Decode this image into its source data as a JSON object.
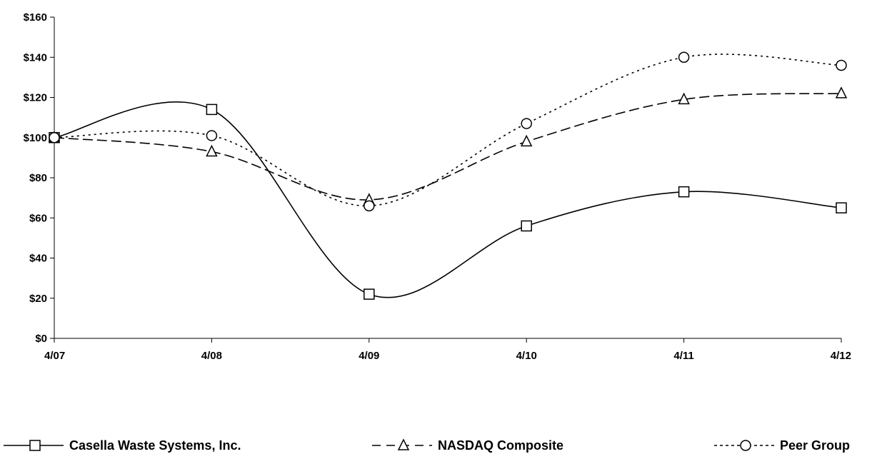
{
  "chart_data": {
    "type": "line",
    "categories": [
      "4/07",
      "4/08",
      "4/09",
      "4/10",
      "4/11",
      "4/12"
    ],
    "ylim": [
      0,
      160
    ],
    "yticks": [
      0,
      20,
      40,
      60,
      80,
      100,
      120,
      140,
      160
    ],
    "ytick_labels": [
      "$0",
      "$20",
      "$40",
      "$60",
      "$80",
      "$100",
      "$120",
      "$140",
      "$160"
    ],
    "grid": false,
    "legend_position": "bottom",
    "series": [
      {
        "name": "Casella Waste Systems, Inc.",
        "values": [
          100,
          114,
          22,
          56,
          73,
          65
        ],
        "marker": "square",
        "dash": "solid",
        "color": "#000000"
      },
      {
        "name": "NASDAQ Composite",
        "values": [
          100,
          93,
          69,
          98,
          119,
          122
        ],
        "marker": "triangle",
        "dash": "long-dash",
        "color": "#000000"
      },
      {
        "name": "Peer Group",
        "values": [
          100,
          101,
          66,
          107,
          140,
          136
        ],
        "marker": "circle",
        "dash": "dotted",
        "color": "#000000"
      }
    ]
  }
}
